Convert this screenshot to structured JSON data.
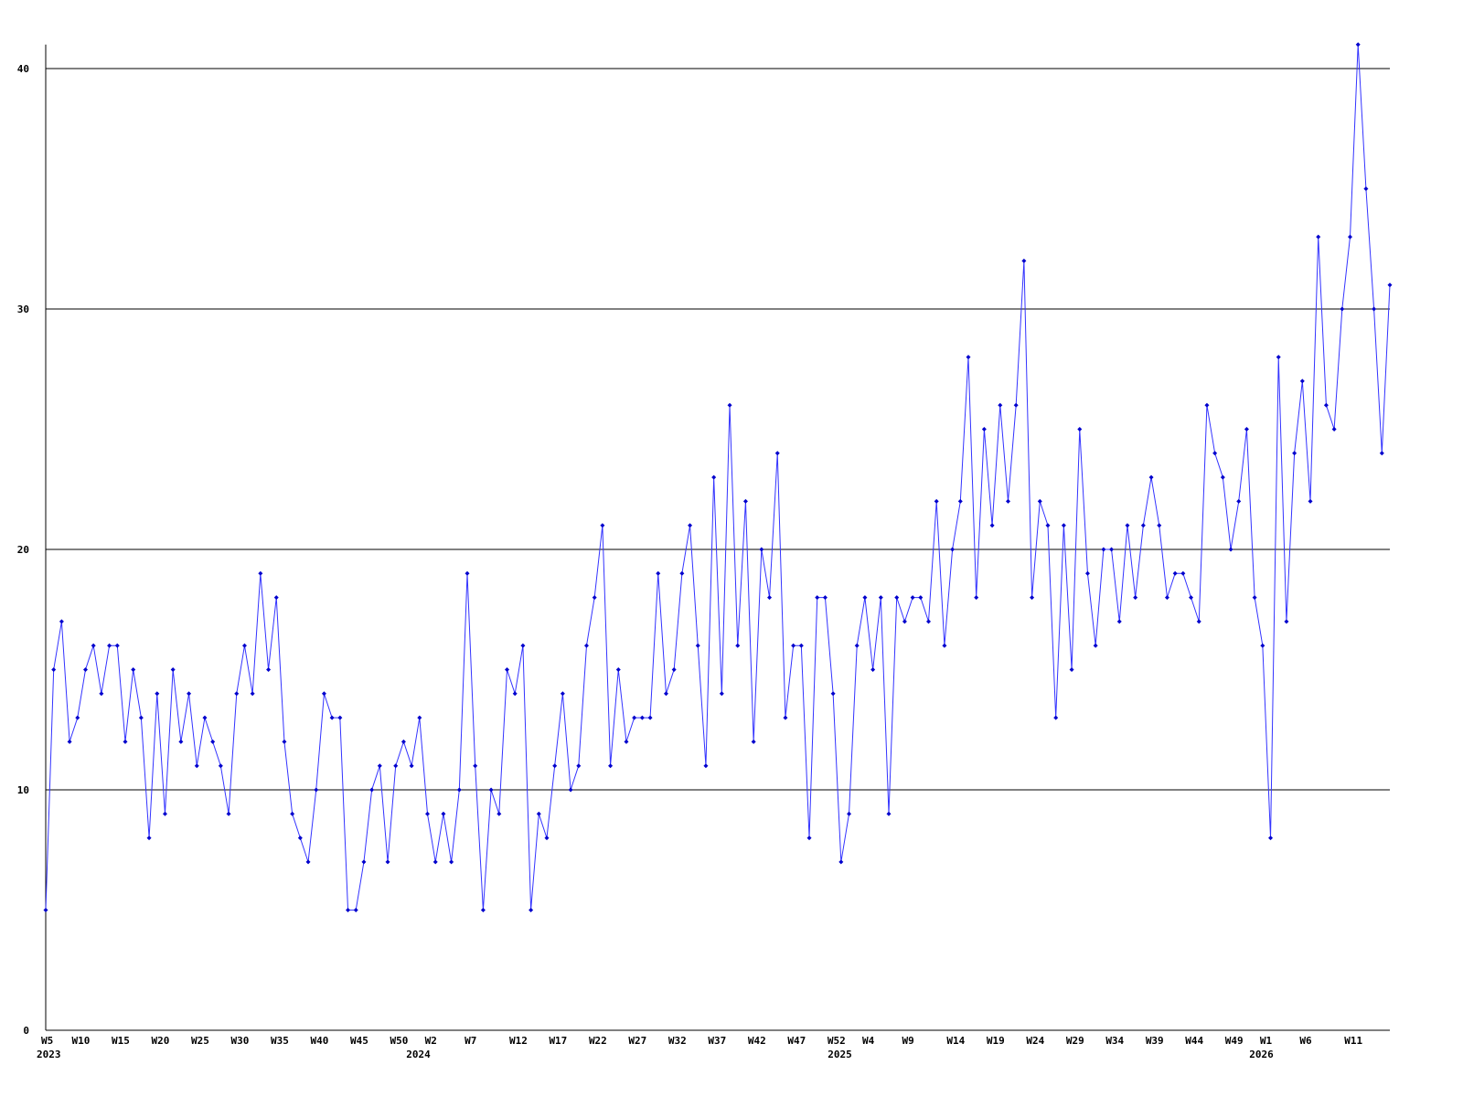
{
  "chart_data": {
    "type": "line",
    "categories": [
      "W5",
      null,
      null,
      null,
      null,
      "W10",
      null,
      null,
      null,
      null,
      "W15",
      null,
      null,
      null,
      null,
      "W20",
      null,
      null,
      null,
      null,
      "W25",
      null,
      null,
      null,
      null,
      "W30",
      null,
      null,
      null,
      null,
      "W35",
      null,
      null,
      null,
      null,
      "W40",
      null,
      null,
      null,
      null,
      "W45",
      null,
      null,
      null,
      null,
      "W50",
      null,
      null,
      null,
      "W2",
      null,
      null,
      null,
      null,
      "W7",
      null,
      null,
      null,
      null,
      null,
      "W12",
      null,
      null,
      null,
      null,
      "W17",
      null,
      null,
      null,
      null,
      "W22",
      null,
      null,
      null,
      null,
      "W27",
      null,
      null,
      null,
      null,
      "W32",
      null,
      null,
      null,
      null,
      "W37",
      null,
      null,
      null,
      null,
      "W42",
      null,
      null,
      null,
      null,
      "W47",
      null,
      null,
      null,
      null,
      "W52",
      null,
      null,
      null,
      "W4",
      null,
      null,
      null,
      null,
      "W9",
      null,
      null,
      null,
      null,
      null,
      "W14",
      null,
      null,
      null,
      null,
      "W19",
      null,
      null,
      null,
      null,
      "W24",
      null,
      null,
      null,
      null,
      "W29",
      null,
      null,
      null,
      null,
      "W34",
      null,
      null,
      null,
      null,
      "W39",
      null,
      null,
      null,
      null,
      "W44",
      null,
      null,
      null,
      null,
      "W49",
      null,
      null,
      null,
      "W1",
      null,
      null,
      null,
      null,
      "W6",
      null,
      null,
      null,
      null,
      null,
      "W11",
      null,
      null,
      null,
      null
    ],
    "years": [
      "2023",
      null,
      null,
      null,
      null,
      null,
      null,
      null,
      null,
      null,
      null,
      null,
      null,
      null,
      null,
      null,
      null,
      null,
      null,
      null,
      null,
      null,
      null,
      null,
      null,
      null,
      null,
      null,
      null,
      null,
      null,
      null,
      null,
      null,
      null,
      null,
      null,
      null,
      null,
      null,
      null,
      null,
      null,
      null,
      null,
      null,
      null,
      null,
      "2024",
      null,
      null,
      null,
      null,
      null,
      null,
      null,
      null,
      null,
      null,
      null,
      null,
      null,
      null,
      null,
      null,
      null,
      null,
      null,
      null,
      null,
      null,
      null,
      null,
      null,
      null,
      null,
      null,
      null,
      null,
      null,
      null,
      null,
      null,
      null,
      null,
      null,
      null,
      null,
      null,
      null,
      null,
      null,
      null,
      null,
      null,
      null,
      null,
      null,
      null,
      null,
      null,
      "2025",
      null,
      null,
      null,
      null,
      null,
      null,
      null,
      null,
      null,
      null,
      null,
      null,
      null,
      null,
      null,
      null,
      null,
      null,
      null,
      null,
      null,
      null,
      null,
      null,
      null,
      null,
      null,
      null,
      null,
      null,
      null,
      null,
      null,
      null,
      null,
      null,
      null,
      null,
      null,
      null,
      null,
      null,
      null,
      null,
      null,
      null,
      null,
      null,
      null,
      null,
      null,
      null,
      "2026",
      null,
      null,
      null,
      null,
      null,
      null,
      null,
      null,
      null,
      null,
      null,
      null,
      null,
      null,
      null
    ],
    "values": [
      5,
      15,
      17,
      12,
      13,
      15,
      16,
      14,
      16,
      16,
      12,
      15,
      13,
      8,
      14,
      9,
      15,
      12,
      14,
      11,
      13,
      12,
      11,
      9,
      14,
      16,
      14,
      19,
      15,
      18,
      12,
      9,
      8,
      7,
      10,
      14,
      13,
      13,
      5,
      5,
      7,
      10,
      11,
      7,
      11,
      12,
      11,
      13,
      9,
      7,
      9,
      7,
      10,
      19,
      11,
      5,
      10,
      9,
      15,
      14,
      16,
      5,
      9,
      8,
      11,
      14,
      10,
      11,
      16,
      18,
      21,
      11,
      15,
      12,
      13,
      13,
      13,
      19,
      14,
      15,
      19,
      21,
      16,
      11,
      23,
      14,
      26,
      16,
      22,
      12,
      20,
      18,
      24,
      13,
      16,
      16,
      8,
      18,
      18,
      14,
      7,
      9,
      16,
      18,
      15,
      18,
      9,
      18,
      17,
      18,
      18,
      17,
      22,
      16,
      20,
      22,
      28,
      18,
      25,
      21,
      26,
      22,
      26,
      32,
      18,
      22,
      21,
      13,
      21,
      15,
      25,
      19,
      16,
      20,
      20,
      17,
      21,
      18,
      21,
      23,
      21,
      18,
      19,
      19,
      18,
      17,
      26,
      24,
      23,
      20,
      22,
      25,
      18,
      16,
      8,
      28,
      17,
      24,
      27,
      22,
      33,
      26,
      25,
      30,
      33,
      41,
      35,
      30,
      24,
      31
    ],
    "color": "#3333ff",
    "ylim": [
      0,
      41
    ],
    "yticks": [
      0,
      10,
      20,
      30,
      40
    ],
    "grid": true
  }
}
